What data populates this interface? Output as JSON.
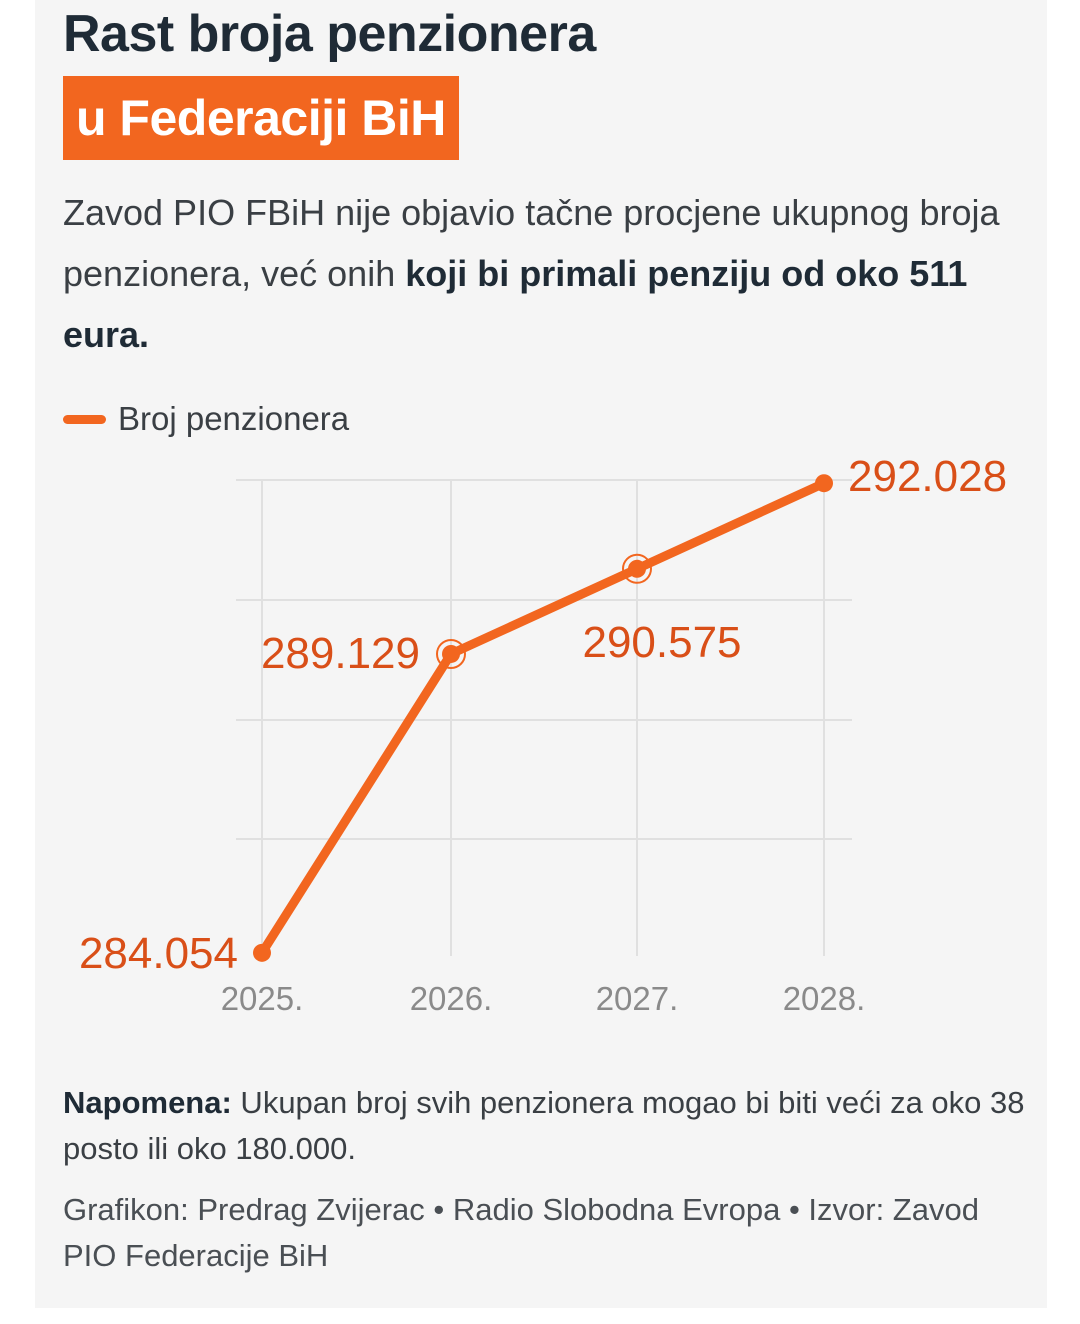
{
  "title": {
    "line1": "Rast broja penzionera",
    "line2": "u Federaciji BiH"
  },
  "subtitle": {
    "normal": "Zavod PIO FBiH nije objavio tačne procjene ukupnog broja penzionera, već onih ",
    "bold": "koji bi primali penziju od oko 511 eura."
  },
  "chart_data": {
    "type": "line",
    "categories": [
      "2025.",
      "2026.",
      "2027.",
      "2028."
    ],
    "series": [
      {
        "name": "Broj penzionera",
        "values": [
          284054,
          289129,
          290575,
          292028
        ],
        "labels": [
          "284.054",
          "289.129",
          "290.575",
          "292.028"
        ]
      }
    ],
    "ylim": [
      284000,
      292100
    ],
    "grid": true,
    "legend": "top-left",
    "xlabel": "",
    "ylabel": "",
    "colors": {
      "line": "#f2661f",
      "label": "#d94f18",
      "grid": "#e0e0e0",
      "tick": "#8a8a8a"
    }
  },
  "note": {
    "label": "Napomena:",
    "text": " Ukupan broj svih penzionera mogao bi biti veći za oko 38 posto ili oko 180.000."
  },
  "credits": "Grafikon: Predrag Zvijerac • Radio Slobodna Evropa • Izvor: Zavod PIO Federacije BiH"
}
